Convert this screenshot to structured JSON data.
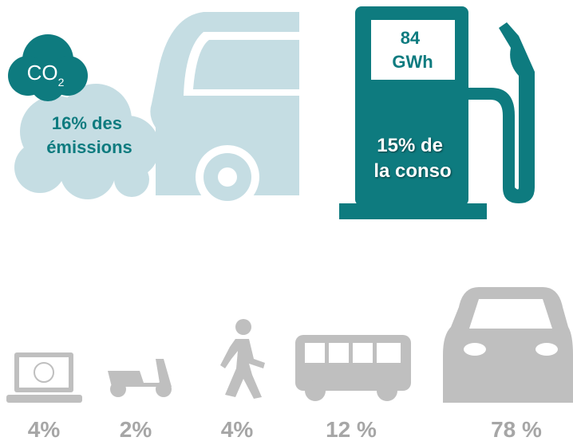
{
  "co2_badge": {
    "label": "CO",
    "subscript": "2"
  },
  "emissions": {
    "lines": [
      "16% des",
      "émissions"
    ]
  },
  "pump": {
    "energy": [
      "84",
      "GWh"
    ],
    "share": [
      "15% de",
      "la conso"
    ]
  },
  "modes": [
    {
      "label": "4%"
    },
    {
      "label": "2%"
    },
    {
      "label": "4%"
    },
    {
      "label": "12 %"
    },
    {
      "label": "78 %"
    }
  ]
}
